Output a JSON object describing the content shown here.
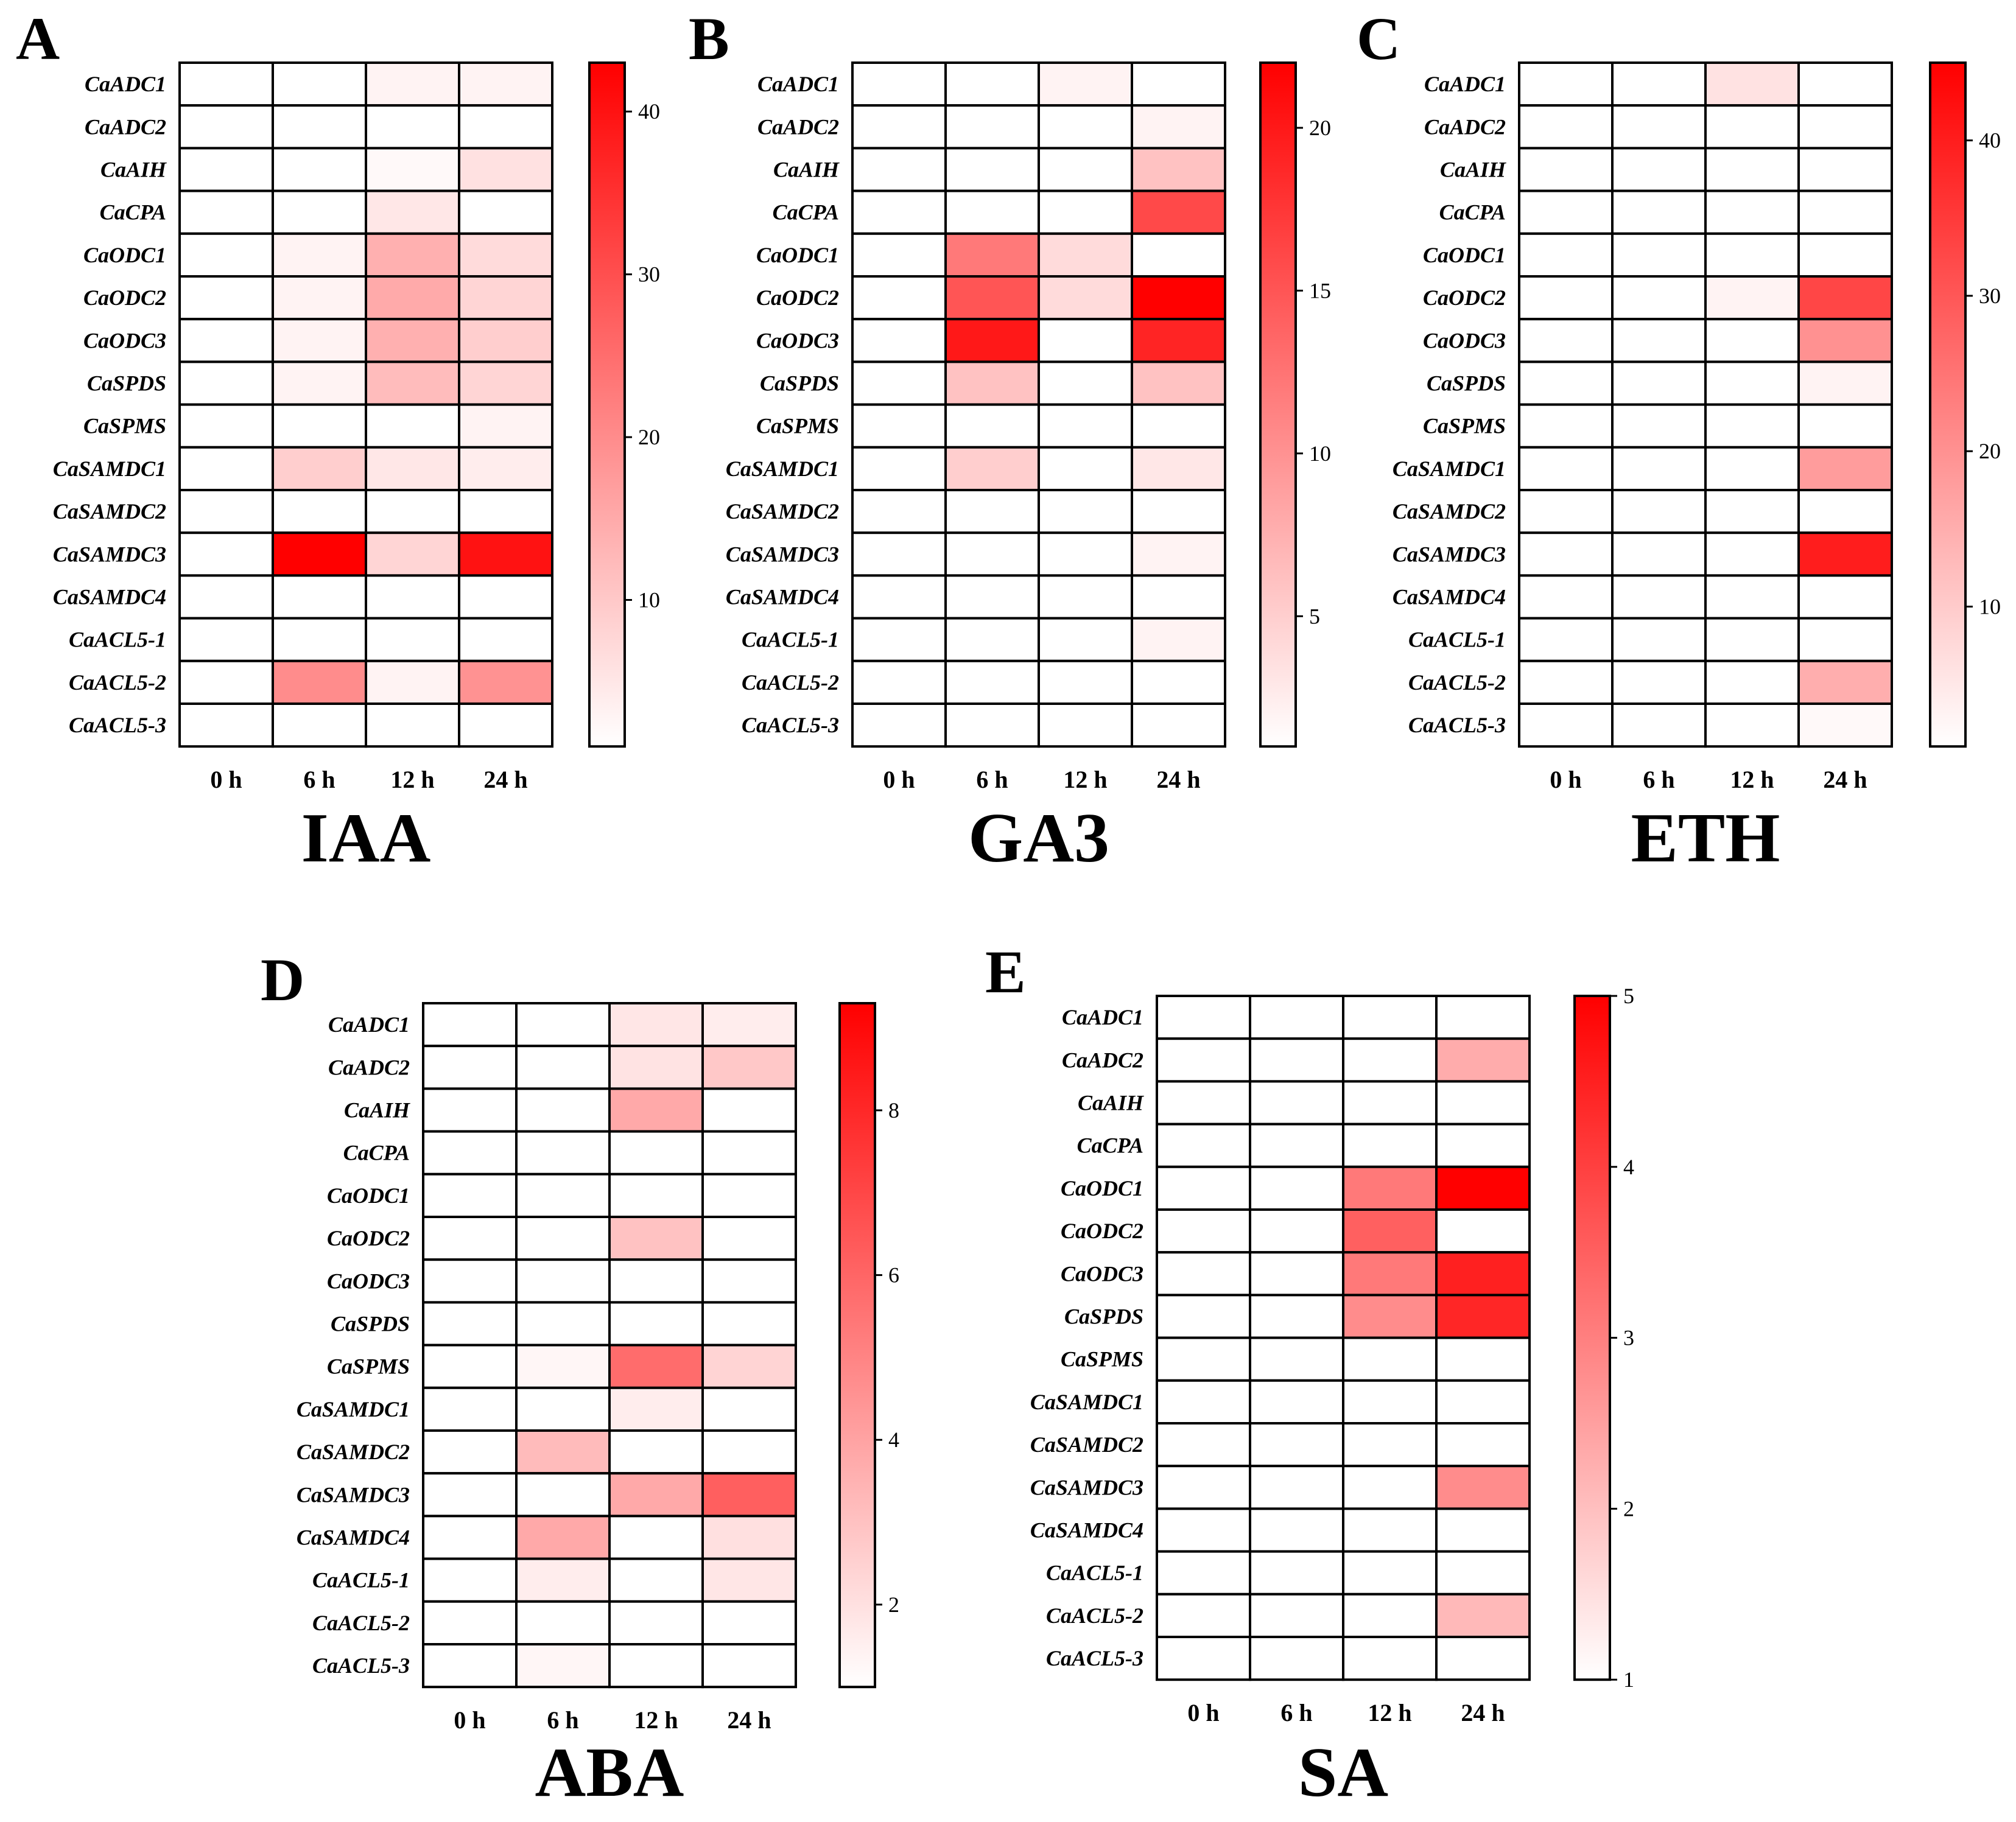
{
  "figure": {
    "genes": [
      "CaADC1",
      "CaADC2",
      "CaAIH",
      "CaCPA",
      "CaODC1",
      "CaODC2",
      "CaODC3",
      "CaSPDS",
      "CaSPMS",
      "CaSAMDC1",
      "CaSAMDC2",
      "CaSAMDC3",
      "CaSAMDC4",
      "CaACL5-1",
      "CaACL5-2",
      "CaACL5-3"
    ],
    "times": [
      "0 h",
      "6 h",
      "12 h",
      "24 h"
    ],
    "cell_low_color": "#ffffff",
    "cell_high_color": "#ff0000"
  },
  "chart_data": [
    {
      "type": "heatmap",
      "panel": "A",
      "title": "IAA",
      "vmin": 1,
      "vmax": 43,
      "ticks": [
        10,
        20,
        30,
        40
      ],
      "values": [
        [
          1,
          1,
          3,
          3
        ],
        [
          1,
          1,
          1,
          1
        ],
        [
          1,
          1,
          2,
          6
        ],
        [
          1,
          1,
          5,
          1
        ],
        [
          1,
          3,
          14,
          7
        ],
        [
          1,
          3,
          15,
          8
        ],
        [
          1,
          3,
          14,
          9
        ],
        [
          1,
          3,
          12,
          8
        ],
        [
          1,
          1,
          1,
          3
        ],
        [
          1,
          9,
          5,
          4
        ],
        [
          1,
          1,
          1,
          1
        ],
        [
          1,
          43,
          8,
          40
        ],
        [
          1,
          1,
          1,
          1
        ],
        [
          1,
          1,
          1,
          1
        ],
        [
          1,
          20,
          3,
          19
        ],
        [
          1,
          1,
          1,
          1
        ]
      ]
    },
    {
      "type": "heatmap",
      "panel": "B",
      "title": "GA3",
      "vmin": 1,
      "vmax": 22,
      "ticks": [
        5,
        10,
        15,
        20
      ],
      "values": [
        [
          1,
          1,
          2,
          1
        ],
        [
          1,
          1,
          1,
          2
        ],
        [
          1,
          1,
          1,
          6
        ],
        [
          1,
          1,
          1,
          16
        ],
        [
          1,
          12,
          4,
          1
        ],
        [
          1,
          15,
          4,
          22
        ],
        [
          1,
          20,
          1,
          19
        ],
        [
          1,
          6,
          1,
          6
        ],
        [
          1,
          1,
          1,
          1
        ],
        [
          1,
          5,
          1,
          3
        ],
        [
          1,
          1,
          1,
          1
        ],
        [
          1,
          1,
          1,
          2
        ],
        [
          1,
          1,
          1,
          1
        ],
        [
          1,
          1,
          1,
          2
        ],
        [
          1,
          1,
          1,
          1
        ],
        [
          1,
          1,
          1,
          1
        ]
      ]
    },
    {
      "type": "heatmap",
      "panel": "C",
      "title": "ETH",
      "vmin": 1,
      "vmax": 45,
      "ticks": [
        10,
        20,
        30,
        40
      ],
      "values": [
        [
          1,
          1,
          6,
          1
        ],
        [
          1,
          1,
          1,
          1
        ],
        [
          1,
          1,
          1,
          1
        ],
        [
          1,
          1,
          1,
          1
        ],
        [
          1,
          1,
          1,
          1
        ],
        [
          1,
          1,
          3,
          33
        ],
        [
          1,
          1,
          1,
          20
        ],
        [
          1,
          1,
          1,
          3
        ],
        [
          1,
          1,
          1,
          1
        ],
        [
          1,
          1,
          1,
          18
        ],
        [
          1,
          1,
          1,
          1
        ],
        [
          1,
          1,
          1,
          40
        ],
        [
          1,
          1,
          1,
          1
        ],
        [
          1,
          1,
          1,
          1
        ],
        [
          1,
          1,
          1,
          15
        ],
        [
          1,
          1,
          1,
          2
        ]
      ]
    },
    {
      "type": "heatmap",
      "panel": "D",
      "title": "ABA",
      "vmin": 1,
      "vmax": 9.3,
      "ticks": [
        2,
        4,
        6,
        8
      ],
      "values": [
        [
          1,
          1,
          1.8,
          1.6
        ],
        [
          1,
          1,
          1.9,
          2.8
        ],
        [
          1,
          1,
          3.8,
          1
        ],
        [
          1,
          1,
          1,
          1
        ],
        [
          1,
          1,
          1,
          1
        ],
        [
          1,
          1,
          3.0,
          1
        ],
        [
          1,
          1,
          1,
          1
        ],
        [
          1,
          1,
          1,
          1
        ],
        [
          1,
          1.3,
          5.8,
          2.4
        ],
        [
          1,
          1,
          1.6,
          1
        ],
        [
          1,
          3.2,
          1,
          1
        ],
        [
          1,
          1,
          3.8,
          6.2
        ],
        [
          1,
          3.8,
          1,
          2.0
        ],
        [
          1,
          1.6,
          1,
          1.8
        ],
        [
          1,
          1,
          1,
          1
        ],
        [
          1,
          1.3,
          1,
          1
        ]
      ]
    },
    {
      "type": "heatmap",
      "panel": "E",
      "title": "SA",
      "vmin": 1,
      "vmax": 5,
      "ticks": [
        1,
        2,
        3,
        4,
        5
      ],
      "values": [
        [
          1,
          1,
          1,
          1
        ],
        [
          1,
          1,
          1,
          2.3
        ],
        [
          1,
          1,
          1,
          1
        ],
        [
          1,
          1,
          1,
          1
        ],
        [
          1,
          1,
          3.1,
          5.0
        ],
        [
          1,
          1,
          3.5,
          1
        ],
        [
          1,
          1,
          3.1,
          4.5
        ],
        [
          1,
          1,
          2.8,
          4.4
        ],
        [
          1,
          1,
          1,
          1
        ],
        [
          1,
          1,
          1,
          1
        ],
        [
          1,
          1,
          1,
          1
        ],
        [
          1,
          1,
          1,
          2.8
        ],
        [
          1,
          1,
          1,
          1
        ],
        [
          1,
          1,
          1,
          1
        ],
        [
          1,
          1,
          1,
          2.1
        ],
        [
          1,
          1,
          1,
          1
        ]
      ]
    }
  ]
}
